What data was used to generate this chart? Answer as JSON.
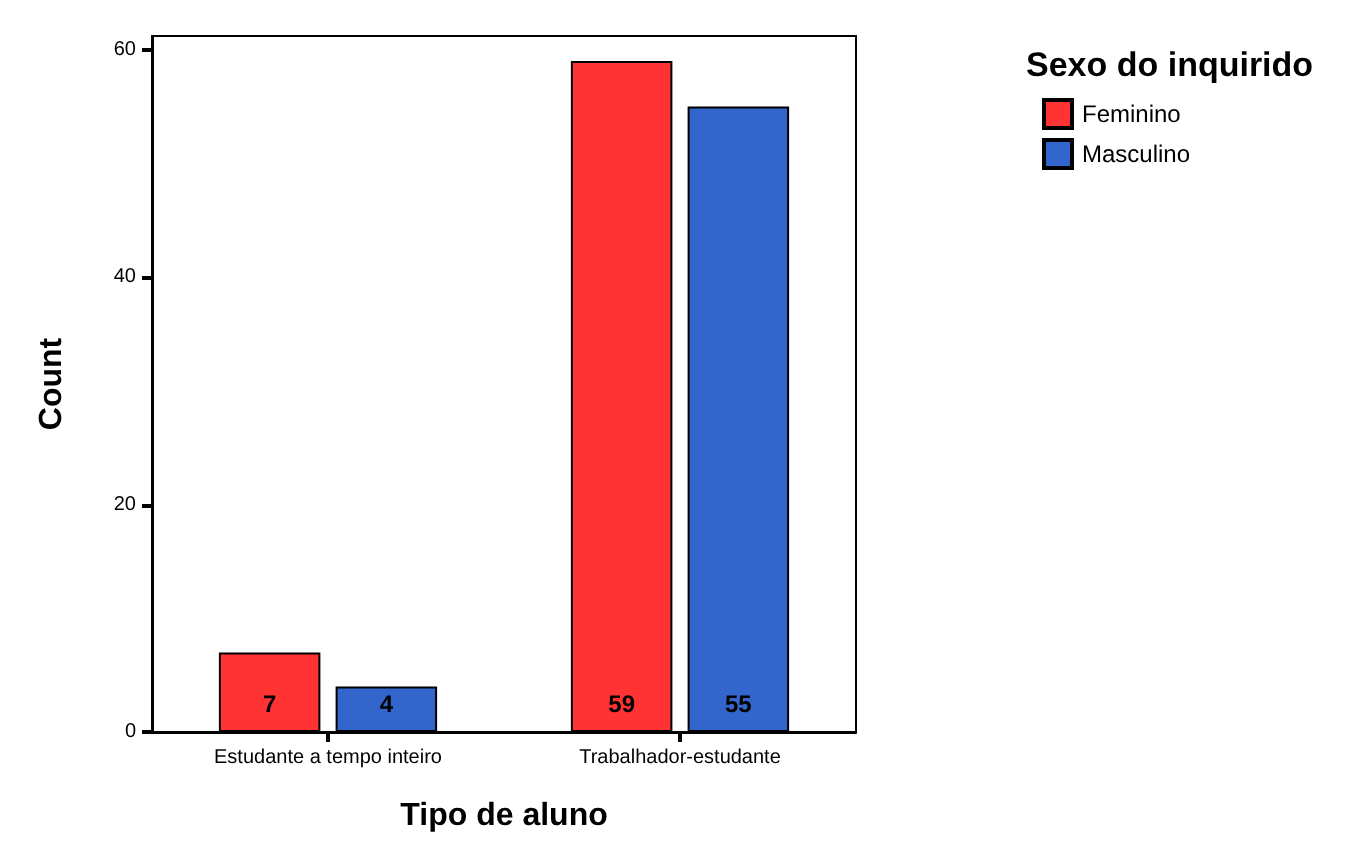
{
  "chart_data": {
    "type": "bar",
    "xlabel": "Tipo de aluno",
    "ylabel": "Count",
    "legend_title": "Sexo do inquirido",
    "legend": "top right",
    "categories": [
      "Estudante a tempo inteiro",
      "Trabalhador-estudante"
    ],
    "series": [
      {
        "name": "Feminino",
        "color": "#ff3333",
        "values": [
          7,
          59
        ]
      },
      {
        "name": "Masculino",
        "color": "#3366cc",
        "values": [
          4,
          55
        ]
      }
    ],
    "ylim": [
      0,
      61.2
    ],
    "yticks": [
      0,
      20,
      40,
      60
    ],
    "data_labels": true
  }
}
